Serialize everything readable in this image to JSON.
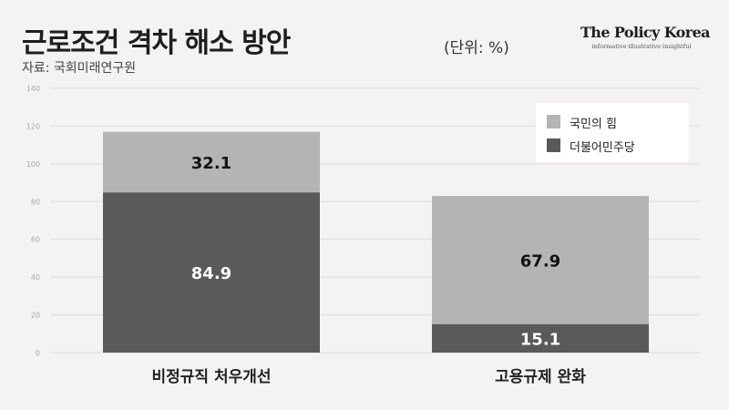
{
  "header": {
    "title": "근로조건 격차 해소 방안",
    "source": "자료: 국회미래연구원",
    "unit": "(단위: %)"
  },
  "brand": {
    "name": "The Policy Korea",
    "tagline": "informative·illustrative·insightful"
  },
  "chart_data": {
    "type": "bar",
    "stacked": true,
    "categories": [
      "비정규직 처우개선",
      "고용규제 완화"
    ],
    "series": [
      {
        "name": "더불어민주당",
        "values": [
          84.9,
          15.1
        ],
        "color": "#5a5a5a"
      },
      {
        "name": "국민의 힘",
        "values": [
          32.1,
          67.9
        ],
        "color": "#b4b4b4"
      }
    ],
    "ylim": [
      0,
      140
    ],
    "yticks": [
      0,
      20,
      40,
      60,
      80,
      100,
      120,
      140
    ],
    "grid": true,
    "legend": "top-right"
  }
}
